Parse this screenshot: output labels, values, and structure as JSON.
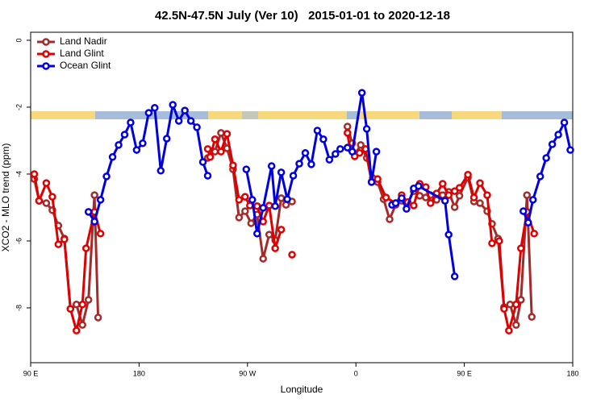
{
  "chart_data": {
    "type": "line",
    "title": "42.5N-47.5N July (Ver 10)   2015-01-01 to 2020-12-18",
    "xlabel": "Longitude",
    "ylabel": "XCO2 - MLO trend (ppm)",
    "xlim": [
      90,
      540
    ],
    "ylim": [
      -9.64,
      0.24
    ],
    "xticks": [
      {
        "value": 90,
        "label": "90 E"
      },
      {
        "value": 180,
        "label": "180"
      },
      {
        "value": 270,
        "label": "90 W"
      },
      {
        "value": 360,
        "label": "0"
      },
      {
        "value": 450,
        "label": "90 E"
      },
      {
        "value": 540,
        "label": "180"
      }
    ],
    "yticks": [
      0,
      -2,
      -4,
      -6,
      -8
    ],
    "legend": "top-left",
    "series": [
      {
        "name": "Land Nadir",
        "color": "#a52a2a",
        "x": [
          93,
          97,
          103,
          108,
          113,
          118,
          123,
          128,
          133,
          138,
          143,
          146,
          null,
          237,
          243,
          248,
          253,
          258,
          263,
          268,
          273,
          278,
          283,
          288,
          293,
          298,
          302,
          307,
          null,
          353,
          357,
          359,
          364,
          369,
          374,
          378,
          383,
          388,
          393,
          398,
          403,
          408,
          413,
          418,
          422,
          427,
          432,
          437,
          442,
          446,
          453,
          458,
          463,
          469,
          473,
          478,
          483,
          488,
          493,
          497,
          502,
          506
        ],
        "values": [
          -4.15,
          -4.8,
          -4.87,
          -5.08,
          -5.54,
          -5.93,
          -8.03,
          -7.9,
          -8.51,
          -7.76,
          -4.63,
          -8.29,
          null,
          -3.52,
          -3.33,
          -2.77,
          -3.23,
          -3.86,
          -5.3,
          -5.11,
          -5.47,
          -5.21,
          -6.53,
          -5.81,
          -5.98,
          -4.72,
          -4.92,
          -4.82,
          null,
          -2.58,
          -3.08,
          -3.42,
          -3.13,
          -3.52,
          -4.12,
          -4.24,
          -4.75,
          -5.35,
          -4.92,
          -4.8,
          -4.87,
          -4.51,
          -4.65,
          -4.7,
          -4.63,
          -4.77,
          -4.63,
          -4.53,
          -4.99,
          -4.65,
          -4.1,
          -4.82,
          -4.87,
          -5.11,
          -5.49,
          -5.93,
          -7.98,
          -7.9,
          -8.51,
          -7.76,
          -4.63,
          -8.27
        ]
      },
      {
        "name": "Land Glint",
        "color": "#e00000",
        "x": [
          93,
          97,
          103,
          108,
          113,
          118,
          123,
          128,
          133,
          136,
          143,
          148,
          null,
          237,
          239,
          243,
          248,
          253,
          258,
          263,
          268,
          272,
          278,
          283,
          288,
          293,
          298,
          null,
          307,
          null,
          353,
          355,
          359,
          363,
          368,
          373,
          378,
          385,
          393,
          398,
          403,
          408,
          413,
          418,
          422,
          427,
          432,
          437,
          442,
          446,
          453,
          458,
          463,
          469,
          473,
          479,
          483,
          487,
          493,
          497,
          502,
          508
        ],
        "values": [
          -4.0,
          -4.8,
          -4.27,
          -4.68,
          -6.1,
          -5.95,
          -8.03,
          -8.68,
          -7.9,
          -6.22,
          -5.13,
          -5.78,
          null,
          -3.25,
          -3.49,
          -2.96,
          -3.33,
          -2.8,
          -3.74,
          -4.77,
          -4.68,
          -4.94,
          -4.96,
          -5.42,
          -4.94,
          -6.22,
          -5.66,
          null,
          -6.41,
          null,
          -2.77,
          -3.23,
          -3.47,
          -3.37,
          -3.25,
          -4.24,
          -4.15,
          -4.7,
          -4.87,
          -4.63,
          -4.84,
          -4.94,
          -4.29,
          -4.39,
          -4.87,
          -4.58,
          -4.29,
          -4.63,
          -4.51,
          -4.41,
          -4.02,
          -4.7,
          -4.27,
          -4.63,
          -6.07,
          -6.0,
          -8.03,
          -8.68,
          -7.9,
          -6.22,
          -5.13,
          -5.78
        ]
      },
      {
        "name": "Ocean Glint",
        "color": "#0000e0",
        "x": [
          138,
          143,
          148,
          153,
          158,
          163,
          168,
          173,
          178,
          183,
          188,
          193,
          198,
          203,
          208,
          213,
          218,
          223,
          228,
          233,
          237,
          null,
          269,
          274,
          278,
          283,
          290,
          293,
          298,
          303,
          308,
          313,
          318,
          323,
          328,
          333,
          338,
          343,
          347,
          353,
          357,
          365,
          369,
          373,
          377,
          null,
          390,
          393,
          398,
          402,
          408,
          412,
          434,
          437,
          442,
          null,
          499,
          503,
          507,
          513,
          518,
          523,
          528,
          533,
          538
        ],
        "values": [
          -5.13,
          -5.42,
          -4.77,
          -4.07,
          -3.49,
          -3.13,
          -2.82,
          -2.46,
          -3.28,
          -3.08,
          -2.17,
          -2.02,
          -3.9,
          -2.94,
          -1.93,
          -2.41,
          -2.1,
          -2.41,
          -2.6,
          -3.64,
          -4.05,
          null,
          -3.86,
          -4.77,
          -5.78,
          -5.01,
          -3.76,
          -4.96,
          -3.95,
          -4.75,
          -4.05,
          -3.69,
          -3.37,
          -3.71,
          -2.7,
          -2.96,
          -3.57,
          -3.4,
          -3.25,
          -3.21,
          -3.33,
          -1.57,
          -2.65,
          -4.24,
          -3.33,
          null,
          -4.92,
          -4.87,
          -4.72,
          -5.04,
          -4.43,
          -4.36,
          -4.8,
          -5.81,
          -7.06,
          null,
          -5.11,
          -5.45,
          -4.77,
          -4.07,
          -3.52,
          -3.11,
          -2.82,
          -2.46,
          -3.28
        ]
      }
    ]
  }
}
